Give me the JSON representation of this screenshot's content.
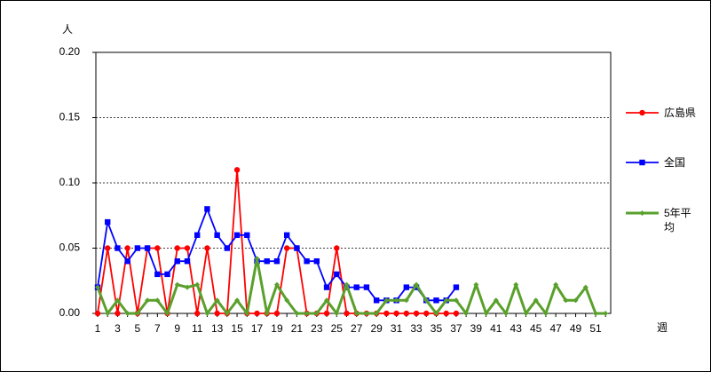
{
  "chart_data": {
    "type": "line",
    "y_label": "人",
    "x_label": "週",
    "categories": [
      "1",
      null,
      "3",
      null,
      "5",
      null,
      "7",
      null,
      "9",
      null,
      "11",
      null,
      "13",
      null,
      "15",
      null,
      "17",
      null,
      "19",
      null,
      "21",
      null,
      "23",
      null,
      "25",
      null,
      "27",
      null,
      "29",
      null,
      "31",
      null,
      "33",
      null,
      "35",
      null,
      "37",
      null,
      "39",
      null,
      "41",
      null,
      "43",
      null,
      "45",
      null,
      "47",
      null,
      "49",
      null,
      "51",
      null
    ],
    "ylim": [
      0,
      0.2
    ],
    "yticks": [
      {
        "value": 0,
        "label": "0.00"
      },
      {
        "value": 0.05,
        "label": "0.05"
      },
      {
        "value": 0.1,
        "label": "0.10"
      },
      {
        "value": 0.15,
        "label": "0.15"
      },
      {
        "value": 0.2,
        "label": "0.20"
      }
    ],
    "grid": true,
    "legend": "right",
    "series": [
      {
        "name": "広島県",
        "color": "#ff0000",
        "marker": "circle",
        "values": [
          0,
          0.05,
          0,
          0.05,
          0,
          0.05,
          0.05,
          0,
          0.05,
          0.05,
          0,
          0.05,
          0,
          0,
          0.11,
          0,
          0,
          0,
          0,
          0.05,
          0.05,
          0,
          0,
          0,
          0.05,
          0,
          0,
          0,
          0,
          0,
          0,
          0,
          0,
          0,
          0,
          0,
          0,
          null,
          null,
          null,
          null,
          null,
          null,
          null,
          null,
          null,
          null,
          null,
          null,
          null,
          null,
          null
        ]
      },
      {
        "name": "全国",
        "color": "#0000ff",
        "marker": "square",
        "values": [
          0.02,
          0.07,
          0.05,
          0.04,
          0.05,
          0.05,
          0.03,
          0.03,
          0.04,
          0.04,
          0.06,
          0.08,
          0.06,
          0.05,
          0.06,
          0.06,
          0.04,
          0.04,
          0.04,
          0.06,
          0.05,
          0.04,
          0.04,
          0.02,
          0.03,
          0.02,
          0.02,
          0.02,
          0.01,
          0.01,
          0.01,
          0.02,
          0.02,
          0.01,
          0.01,
          0.01,
          0.02,
          null,
          null,
          null,
          null,
          null,
          null,
          null,
          null,
          null,
          null,
          null,
          null,
          null,
          null,
          null
        ]
      },
      {
        "name": "5年平均",
        "color": "#5aa02c",
        "marker": "diamond",
        "values": [
          0.02,
          0,
          0.01,
          0,
          0,
          0.01,
          0.01,
          0,
          0.022,
          0.02,
          0.022,
          0,
          0.01,
          0,
          0.01,
          0,
          0.042,
          0,
          0.022,
          0.01,
          0,
          0,
          0,
          0.01,
          0,
          0.022,
          0,
          0,
          0,
          0.01,
          0.01,
          0.01,
          0.022,
          0.01,
          0,
          0.01,
          0.01,
          0,
          0.022,
          0,
          0.01,
          0,
          0.022,
          0,
          0.01,
          0,
          0.022,
          0.01,
          0.01,
          0.02,
          0,
          0
        ]
      }
    ]
  }
}
